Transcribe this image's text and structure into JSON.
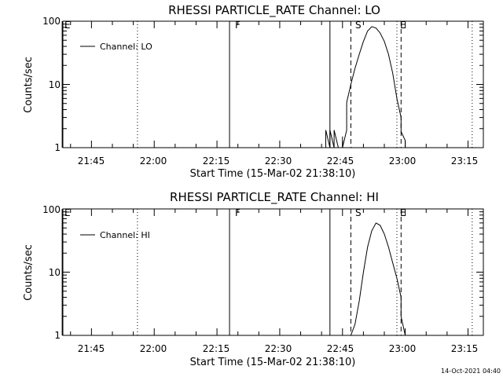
{
  "footer": {
    "timestamp": "14-Oct-2021 04:40"
  },
  "chart_data": [
    {
      "type": "line",
      "title": "RHESSI PARTICLE_RATE Channel: LO",
      "xlabel": "Start Time (15-Mar-02 21:38:10)",
      "ylabel": "Counts/sec",
      "yscale": "log",
      "ylim": [
        1,
        100
      ],
      "xlim_minutes_from_start": [
        0,
        100.5
      ],
      "x_ticks": [
        "21:45",
        "22:00",
        "22:15",
        "22:30",
        "22:45",
        "23:00",
        "23:15"
      ],
      "y_ticks": [
        "1",
        "10",
        "100"
      ],
      "legend": {
        "label": "Channel: LO",
        "position": "top-left"
      },
      "markers": [
        {
          "label": "E",
          "time": "21:38",
          "style": "solid"
        },
        {
          "label": "",
          "time": "21:56",
          "style": "dotted"
        },
        {
          "label": "F",
          "time": "22:18",
          "style": "solid"
        },
        {
          "label": "",
          "time": "22:42",
          "style": "solid"
        },
        {
          "label": "S",
          "time": "22:47",
          "style": "dashed"
        },
        {
          "label": "E",
          "time": "22:58",
          "style": "dotted"
        },
        {
          "label": "",
          "time": "22:59",
          "style": "dashed"
        },
        {
          "label": "",
          "time": "23:16",
          "style": "dotted"
        }
      ],
      "series": [
        {
          "x": [
            "22:41",
            "22:41",
            "22:42",
            "22:42",
            "22:43",
            "22:43",
            "22:44",
            "22:45",
            "22:45",
            "22:45",
            "22:46",
            "22:46",
            "22:46",
            "22:47",
            "22:48",
            "22:49",
            "22:50",
            "22:51",
            "22:52",
            "22:53",
            "22:54",
            "22:55",
            "22:56",
            "22:57",
            "22:58",
            "22:59",
            "22:59",
            "23:00",
            "23:00"
          ],
          "y": [
            1.0,
            1.9,
            1.0,
            1.9,
            1.0,
            1.9,
            1.0,
            1.0,
            1.5,
            1.0,
            1.9,
            2.8,
            5.2,
            10,
            18,
            30,
            48,
            70,
            82,
            78,
            65,
            48,
            30,
            15,
            6,
            3.0,
            1.8,
            1.3,
            1.0
          ]
        }
      ]
    },
    {
      "type": "line",
      "title": "RHESSI PARTICLE_RATE Channel: HI",
      "xlabel": "Start Time (15-Mar-02 21:38:10)",
      "ylabel": "Counts/sec",
      "yscale": "log",
      "ylim": [
        1,
        100
      ],
      "xlim_minutes_from_start": [
        0,
        100.5
      ],
      "x_ticks": [
        "21:45",
        "22:00",
        "22:15",
        "22:30",
        "22:45",
        "23:00",
        "23:15"
      ],
      "y_ticks": [
        "1",
        "10",
        "100"
      ],
      "legend": {
        "label": "Channel: HI",
        "position": "top-left"
      },
      "markers": [
        {
          "label": "E",
          "time": "21:38",
          "style": "solid"
        },
        {
          "label": "",
          "time": "21:56",
          "style": "dotted"
        },
        {
          "label": "F",
          "time": "22:18",
          "style": "solid"
        },
        {
          "label": "",
          "time": "22:42",
          "style": "solid"
        },
        {
          "label": "S",
          "time": "22:47",
          "style": "dashed"
        },
        {
          "label": "E",
          "time": "22:58",
          "style": "dotted"
        },
        {
          "label": "",
          "time": "22:59",
          "style": "dashed"
        },
        {
          "label": "",
          "time": "23:16",
          "style": "dotted"
        }
      ],
      "series": [
        {
          "x": [
            "22:47",
            "22:48",
            "22:49",
            "22:50",
            "22:51",
            "22:52",
            "22:53",
            "22:54",
            "22:55",
            "22:56",
            "22:57",
            "22:58",
            "22:59",
            "22:59",
            "23:00"
          ],
          "y": [
            1.0,
            1.5,
            3.5,
            10,
            25,
            45,
            60,
            55,
            40,
            25,
            14,
            8,
            4,
            2.0,
            1.0
          ]
        }
      ]
    }
  ]
}
